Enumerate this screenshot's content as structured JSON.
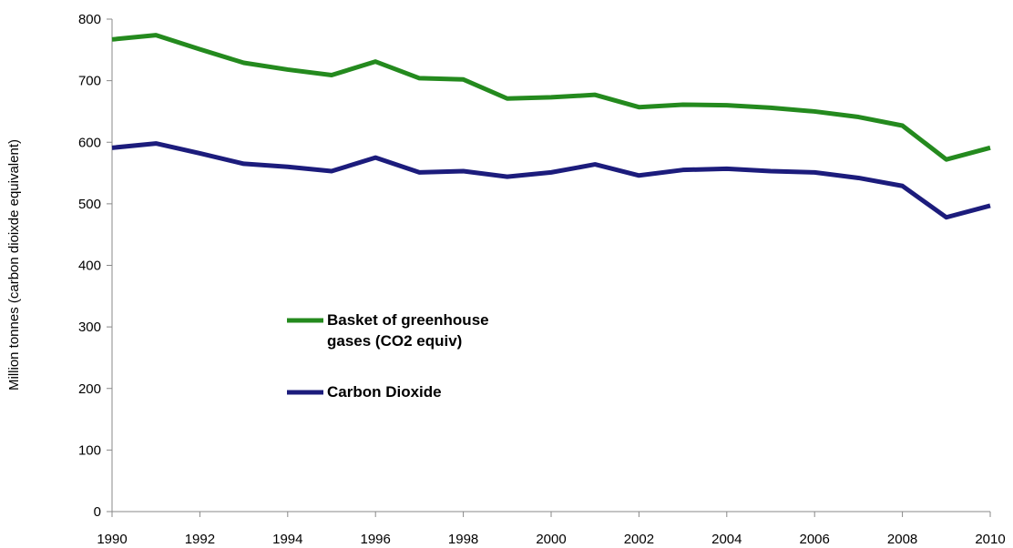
{
  "chart_data": {
    "type": "line",
    "y_label": "Million tonnes (carbon dioixde equivalent)",
    "x": [
      1990,
      1991,
      1992,
      1993,
      1994,
      1995,
      1996,
      1997,
      1998,
      1999,
      2000,
      2001,
      2002,
      2003,
      2004,
      2005,
      2006,
      2007,
      2008,
      2009,
      2010
    ],
    "series": [
      {
        "name": "Basket of greenhouse gases (CO2 equiv)",
        "color": "#248a1e",
        "values": [
          767,
          774,
          751,
          729,
          718,
          709,
          731,
          704,
          702,
          671,
          673,
          677,
          657,
          661,
          660,
          656,
          650,
          641,
          627,
          572,
          591
        ]
      },
      {
        "name": "Carbon Dioxide",
        "color": "#1c1c7c",
        "values": [
          591,
          598,
          582,
          565,
          560,
          553,
          575,
          551,
          553,
          544,
          551,
          564,
          546,
          555,
          557,
          553,
          551,
          542,
          529,
          478,
          497
        ]
      }
    ],
    "xlim": [
      1990,
      2010
    ],
    "xticks": [
      1990,
      1992,
      1994,
      1996,
      1998,
      2000,
      2002,
      2004,
      2006,
      2008,
      2010
    ],
    "ylim": [
      0,
      800
    ],
    "yticks": [
      0,
      100,
      200,
      300,
      400,
      500,
      600,
      700,
      800
    ],
    "grid": false
  }
}
